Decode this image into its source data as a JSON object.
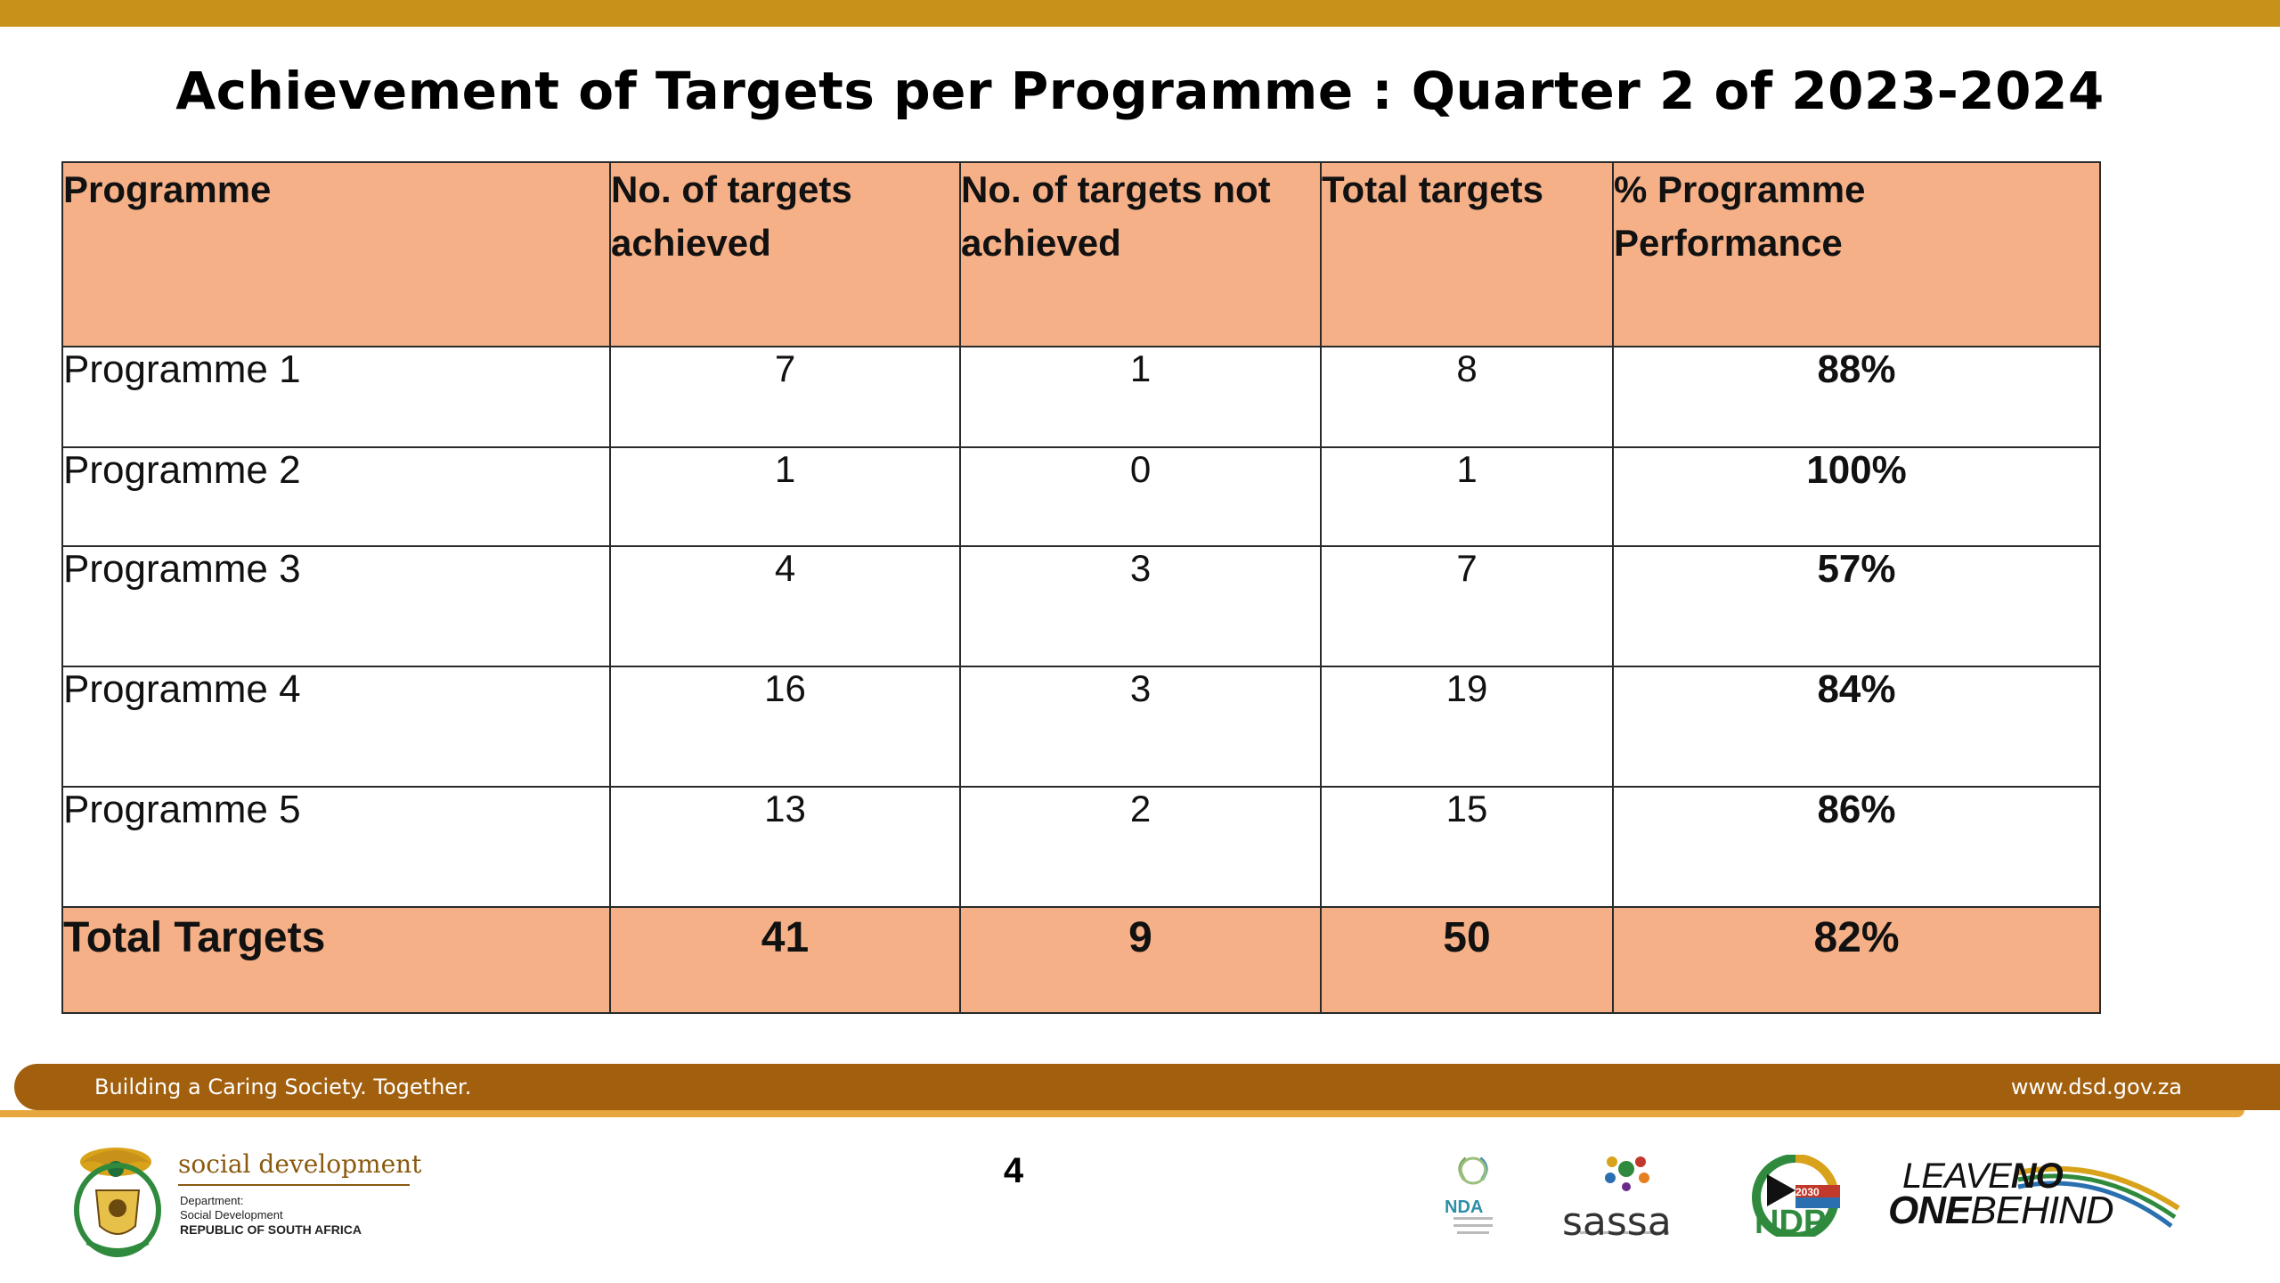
{
  "title": "Achievement of Targets per Programme : Quarter 2 of 2023-2024",
  "table": {
    "headers": [
      [
        "Programme"
      ],
      [
        "No. of targets",
        "achieved"
      ],
      [
        "No. of targets not",
        "achieved"
      ],
      [
        "Total targets"
      ],
      [
        "% Programme",
        "Performance"
      ]
    ],
    "rows": [
      {
        "programme": "Programme 1",
        "achieved": "7",
        "not_achieved": "1",
        "total": "8",
        "percent": "88%"
      },
      {
        "programme": "Programme 2",
        "achieved": "1",
        "not_achieved": "0",
        "total": "1",
        "percent": "100%"
      },
      {
        "programme": "Programme 3",
        "achieved": "4",
        "not_achieved": "3",
        "total": "7",
        "percent": "57%"
      },
      {
        "programme": "Programme 4",
        "achieved": "16",
        "not_achieved": "3",
        "total": "19",
        "percent": "84%"
      },
      {
        "programme": "Programme 5",
        "achieved": "13",
        "not_achieved": "2",
        "total": "15",
        "percent": "86%"
      }
    ],
    "total": {
      "programme": "Total Targets",
      "achieved": "41",
      "not_achieved": "9",
      "total": "50",
      "percent": "82%"
    }
  },
  "footer": {
    "slogan": "Building a Caring Society. Together.",
    "website": "www.dsd.gov.za",
    "page_number": "4"
  },
  "logos": {
    "dsd": {
      "name": "social development",
      "line1": "Department:",
      "line2": "Social Development",
      "line3": "REPUBLIC OF SOUTH AFRICA"
    },
    "nda": "NDA",
    "sassa": "sassa",
    "ndp": "NDP",
    "ndp_year": "2030",
    "lnob_line1_a": "LEAVE",
    "lnob_line1_b": "NO",
    "lnob_line2_a": "ONE",
    "lnob_line2_b": "BEHIND"
  },
  "colors": {
    "top_bar": "#c8921a",
    "header_fill": "#f5b087",
    "footer_band": "#a2600e",
    "footer_accent": "#e7a73d"
  }
}
